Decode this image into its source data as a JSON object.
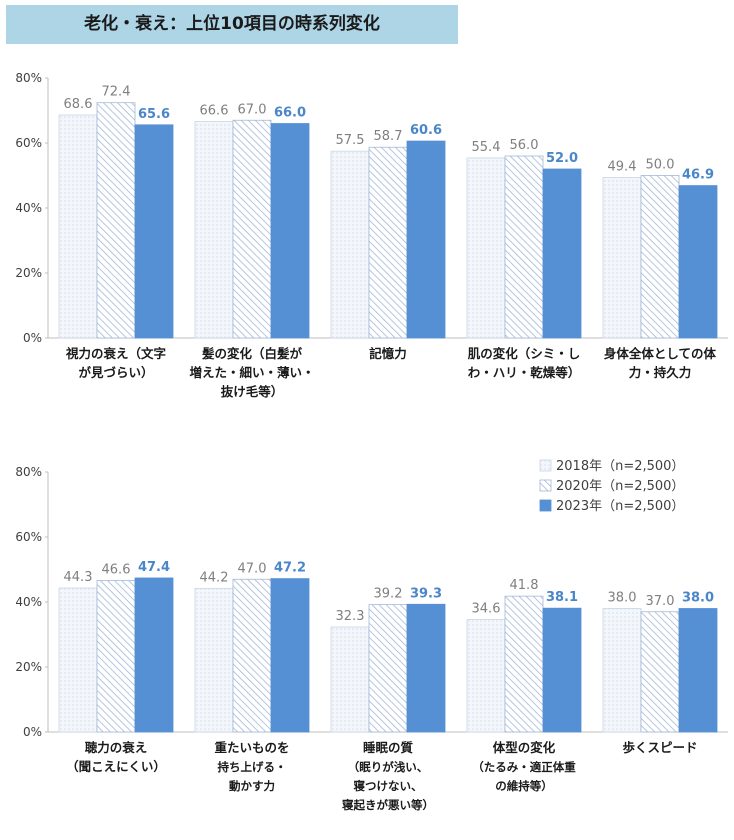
{
  "title": "老化・衰え：上位10項目の時系列変化",
  "colors": {
    "solid": "#5690d4",
    "hatch": "#a4b8d6",
    "light": "#dfe8f2",
    "axis": "#bfbfbf",
    "value_dark": "#7f7f7f",
    "value_accent": "#4a86c8"
  },
  "legend": [
    {
      "label": "2018年（n=2,500）",
      "style": "light"
    },
    {
      "label": "2020年（n=2,500）",
      "style": "hatch"
    },
    {
      "label": "2023年（n=2,500）",
      "style": "solid"
    }
  ],
  "chart_data": [
    {
      "type": "bar",
      "yticks": [
        "0%",
        "20%",
        "40%",
        "60%",
        "80%"
      ],
      "ylim": [
        0,
        80
      ],
      "categories": [
        [
          "視力の衰え（文字",
          "が見づらい）"
        ],
        [
          "髪の変化（白髪が",
          "増えた・細い・薄い・",
          "抜け毛等）"
        ],
        [
          "記憶力"
        ],
        [
          "肌の変化（シミ・し",
          "わ・ハリ・乾燥等）"
        ],
        [
          "身体全体としての体",
          "力・持久力"
        ]
      ],
      "series": [
        {
          "name": "2018年（n=2,500）",
          "values": [
            68.6,
            66.6,
            57.5,
            55.4,
            49.4
          ],
          "labels": [
            "68.6",
            "66.6",
            "57.5",
            "55.4",
            "49.4"
          ]
        },
        {
          "name": "2020年（n=2,500）",
          "values": [
            72.4,
            67.0,
            58.7,
            56.0,
            50.0
          ],
          "labels": [
            "72.4",
            "67.0",
            "58.7",
            "56.0",
            "50.0"
          ]
        },
        {
          "name": "2023年（n=2,500）",
          "values": [
            65.6,
            66.0,
            60.6,
            52.0,
            46.9
          ],
          "labels": [
            "65.6",
            "66.0",
            "60.6",
            "52.0",
            "46.9"
          ]
        }
      ]
    },
    {
      "type": "bar",
      "yticks": [
        "0%",
        "20%",
        "40%",
        "60%",
        "80%"
      ],
      "ylim": [
        0,
        80
      ],
      "categories": [
        [
          "聴力の衰え",
          "（聞こえにくい）"
        ],
        [
          "重たいものを",
          "持ち上げる・",
          "動かす力"
        ],
        [
          "睡眠の質",
          "（眠りが浅い、",
          "寝つけない、",
          "寝起きが悪い等）"
        ],
        [
          "体型の変化",
          "（たるみ・適正体重",
          "の維持等）"
        ],
        [
          "歩くスピード"
        ]
      ],
      "series": [
        {
          "name": "2018年（n=2,500）",
          "values": [
            44.3,
            44.2,
            32.3,
            34.6,
            38.0
          ],
          "labels": [
            "44.3",
            "44.2",
            "32.3",
            "34.6",
            "38.0"
          ]
        },
        {
          "name": "2020年（n=2,500）",
          "values": [
            46.6,
            47.0,
            39.2,
            41.8,
            37.0
          ],
          "labels": [
            "46.6",
            "47.0",
            "39.2",
            "41.8",
            "37.0"
          ]
        },
        {
          "name": "2023年（n=2,500）",
          "values": [
            47.4,
            47.2,
            39.3,
            38.1,
            38.0
          ],
          "labels": [
            "47.4",
            "47.2",
            "39.3",
            "38.1",
            "38.0"
          ]
        }
      ]
    }
  ]
}
